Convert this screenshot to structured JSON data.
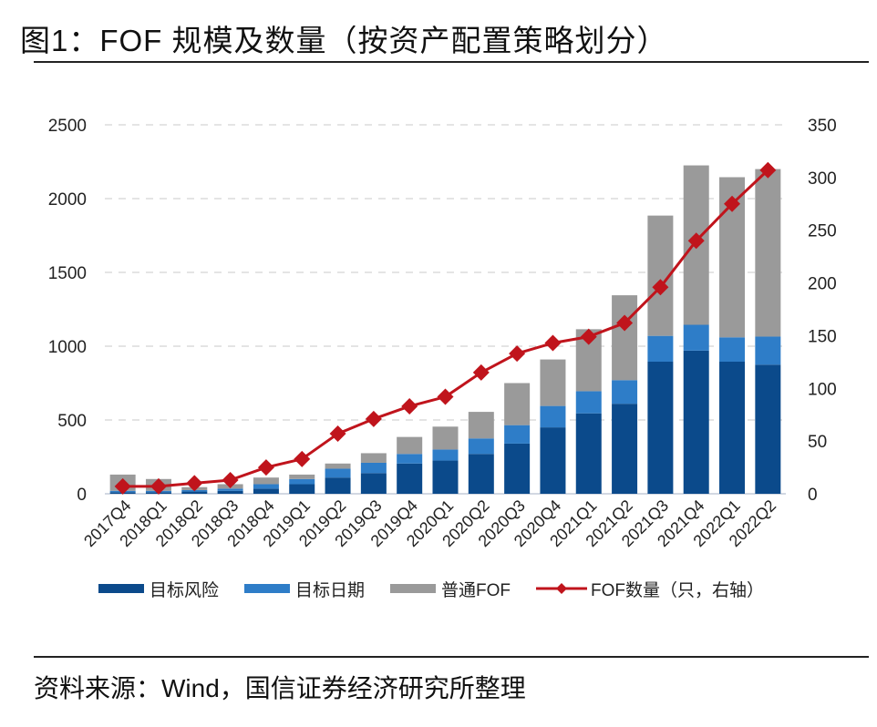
{
  "title": "图1：FOF 规模及数量（按资产配置策略划分）",
  "source": "资料来源：Wind，国信证券经济研究所整理",
  "colors": {
    "target_risk": "#0b4a8b",
    "target_date": "#2e7dc8",
    "regular_fof": "#9a9a9a",
    "count_line": "#c0141c"
  },
  "legend": [
    {
      "label": "目标风险",
      "icon": "bar-swatch"
    },
    {
      "label": "目标日期",
      "icon": "bar-swatch"
    },
    {
      "label": "普通FOF",
      "icon": "bar-swatch"
    },
    {
      "label": "FOF数量（只，右轴）",
      "icon": "line-diamond"
    }
  ],
  "chart_data": {
    "type": "bar",
    "stacked": true,
    "title": "图1：FOF 规模及数量（按资产配置策略划分）",
    "categories": [
      "2017Q4",
      "2018Q1",
      "2018Q2",
      "2018Q3",
      "2018Q4",
      "2019Q1",
      "2019Q2",
      "2019Q3",
      "2019Q4",
      "2020Q1",
      "2020Q2",
      "2020Q3",
      "2020Q4",
      "2021Q1",
      "2021Q2",
      "2021Q3",
      "2021Q4",
      "2022Q1",
      "2022Q2"
    ],
    "series": [
      {
        "name": "目标风险",
        "type": "bar",
        "axis": "left",
        "values": [
          10,
          10,
          15,
          20,
          35,
          65,
          110,
          140,
          205,
          225,
          270,
          340,
          450,
          545,
          610,
          895,
          970,
          895,
          875
        ]
      },
      {
        "name": "目标日期",
        "type": "bar",
        "axis": "left",
        "values": [
          10,
          10,
          10,
          15,
          30,
          35,
          60,
          70,
          65,
          75,
          105,
          125,
          145,
          150,
          160,
          175,
          175,
          165,
          190
        ]
      },
      {
        "name": "普通FOF",
        "type": "bar",
        "axis": "left",
        "values": [
          110,
          80,
          20,
          30,
          45,
          30,
          35,
          65,
          115,
          155,
          180,
          285,
          315,
          420,
          575,
          815,
          1080,
          1085,
          1135
        ]
      },
      {
        "name": "FOF数量（只，右轴）",
        "type": "line",
        "axis": "right",
        "values": [
          7,
          7,
          10,
          13,
          25,
          33,
          57,
          71,
          83,
          92,
          115,
          133,
          143,
          149,
          162,
          196,
          240,
          275,
          307
        ]
      }
    ],
    "y_left": {
      "min": 0,
      "max": 2500,
      "ticks": [
        "0",
        "500",
        "1000",
        "1500",
        "2000",
        "2500"
      ]
    },
    "y_right": {
      "min": 0,
      "max": 350,
      "ticks": [
        "0",
        "50",
        "100",
        "150",
        "200",
        "250",
        "300",
        "350"
      ]
    },
    "grid": "dashed horizontal",
    "legend_position": "bottom"
  }
}
